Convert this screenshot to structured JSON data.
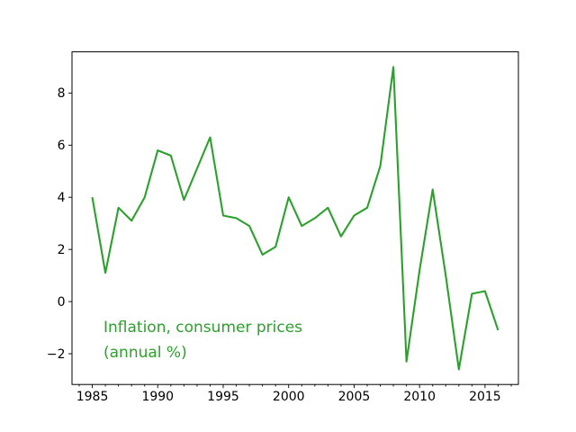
{
  "chart_data": {
    "type": "line",
    "title": "",
    "annotation": {
      "line1": "Inflation, consumer prices",
      "line2": "(annual %)"
    },
    "x": [
      1985,
      1986,
      1987,
      1988,
      1989,
      1990,
      1991,
      1992,
      1993,
      1994,
      1995,
      1996,
      1997,
      1998,
      1999,
      2000,
      2001,
      2002,
      2003,
      2004,
      2005,
      2006,
      2007,
      2008,
      2009,
      2010,
      2011,
      2012,
      2013,
      2014,
      2015,
      2016
    ],
    "series": [
      {
        "name": "Inflation, consumer prices (annual %)",
        "values": [
          4.0,
          1.1,
          3.6,
          3.1,
          4.0,
          5.8,
          5.6,
          3.9,
          5.1,
          6.3,
          3.3,
          3.2,
          2.9,
          1.8,
          2.1,
          4.0,
          2.9,
          3.2,
          3.6,
          2.5,
          3.3,
          3.6,
          5.2,
          9.0,
          -2.3,
          1.2,
          4.3,
          1.0,
          -2.6,
          0.3,
          0.4,
          -1.1
        ]
      }
    ],
    "xlabel": "",
    "ylabel": "",
    "xlim": [
      1983.45,
      2017.55
    ],
    "ylim": [
      -3.18,
      9.58
    ],
    "xticks": [
      1985,
      1990,
      1995,
      2000,
      2005,
      2010,
      2015
    ],
    "xtick_labels": [
      "1985",
      "1990",
      "1995",
      "2000",
      "2005",
      "2010",
      "2015"
    ],
    "x_minor_tick_step": 1,
    "yticks": [
      -2,
      0,
      2,
      4,
      6,
      8
    ],
    "ytick_labels": [
      "−2",
      "0",
      "2",
      "4",
      "6",
      "8"
    ],
    "grid": false,
    "legend_position": "none",
    "line_color": "#2ca02c",
    "axis_color": "#000000",
    "tick_label_color": "#000000",
    "background_color": "#ffffff"
  }
}
